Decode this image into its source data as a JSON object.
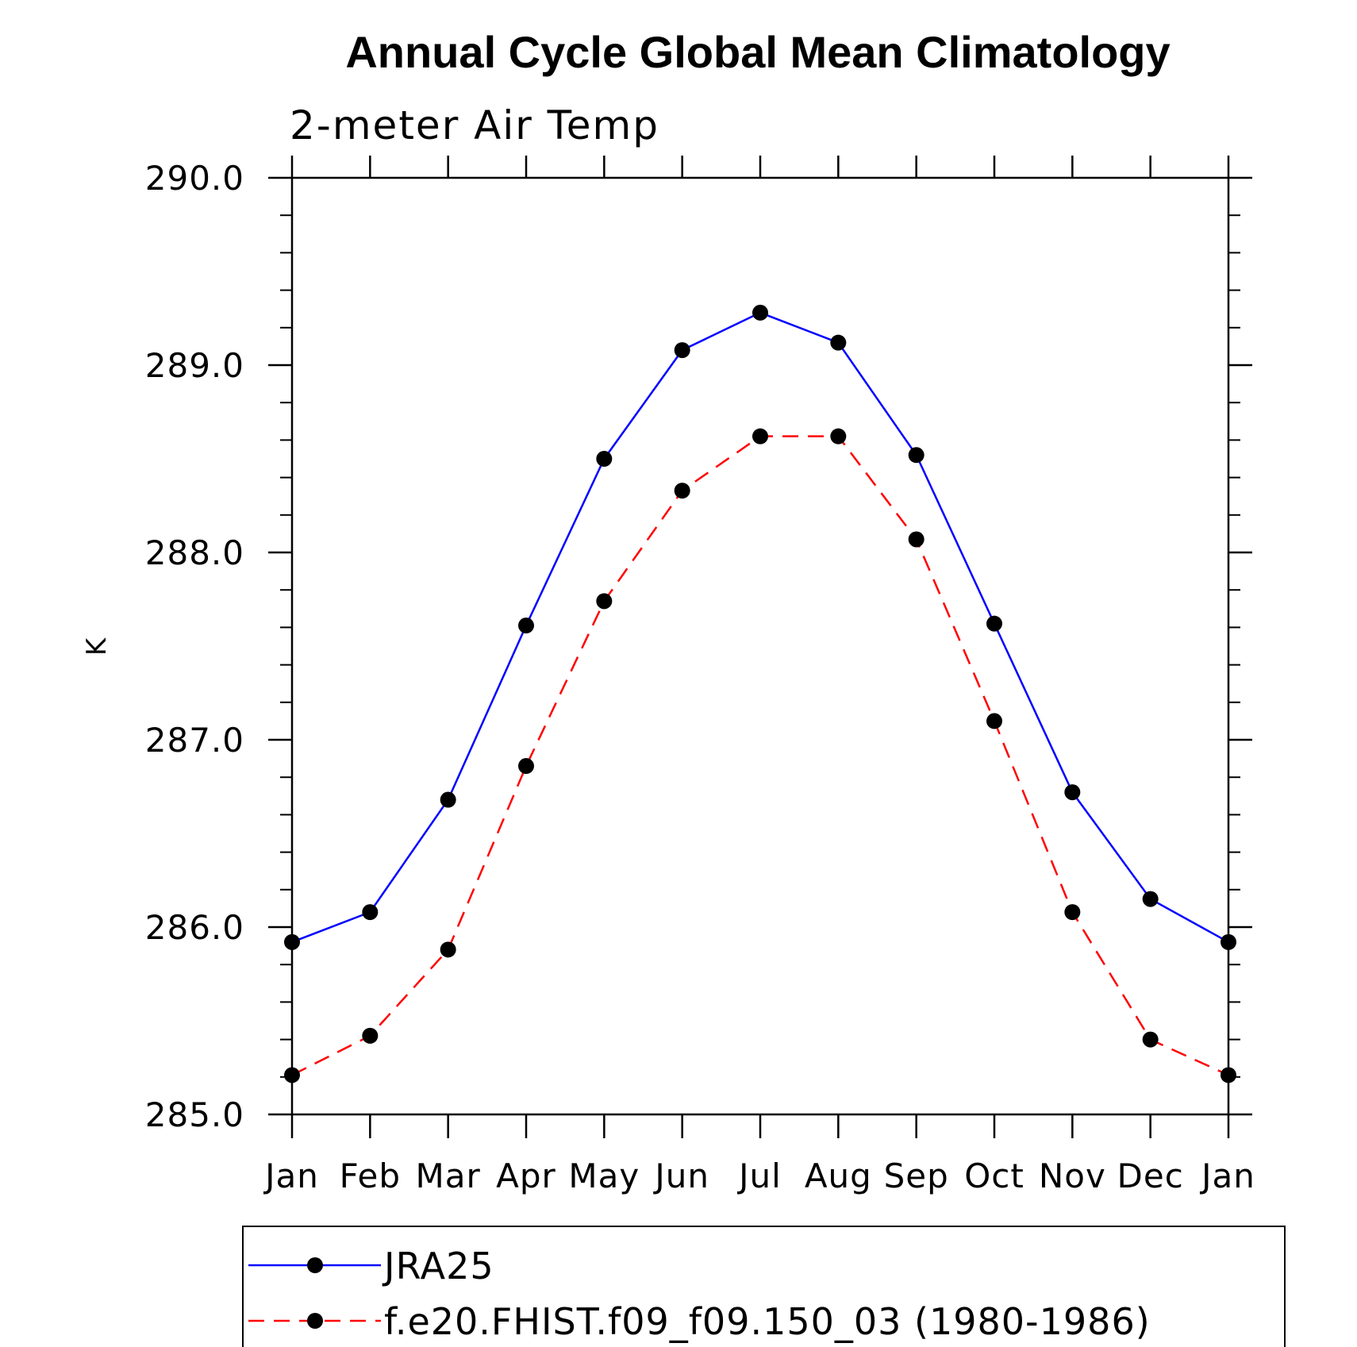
{
  "chart_data": {
    "type": "line",
    "title": "Annual Cycle Global Mean Climatology",
    "subtitle": "2-meter Air Temp",
    "ylabel": "K",
    "xlabel": "",
    "categories": [
      "Jan",
      "Feb",
      "Mar",
      "Apr",
      "May",
      "Jun",
      "Jul",
      "Aug",
      "Sep",
      "Oct",
      "Nov",
      "Dec",
      "Jan"
    ],
    "ylim": [
      285.0,
      290.0
    ],
    "yticks": [
      "285.0",
      "286.0",
      "287.0",
      "288.0",
      "289.0",
      "290.0"
    ],
    "yminor_step": 0.2,
    "grid": false,
    "legend": "bottom",
    "series": [
      {
        "name": "JRA25",
        "color": "#0000ff",
        "dash": "solid",
        "marker": "filled-circle",
        "values": [
          285.92,
          286.08,
          286.68,
          287.61,
          288.5,
          289.08,
          289.28,
          289.12,
          288.52,
          287.62,
          286.72,
          286.15,
          285.92
        ]
      },
      {
        "name": "f.e20.FHIST.f09_f09.150_03 (1980-1986)",
        "color": "#ff0000",
        "dash": "dashed",
        "marker": "filled-circle",
        "values": [
          285.21,
          285.42,
          285.88,
          286.86,
          287.74,
          288.33,
          288.62,
          288.62,
          288.07,
          287.1,
          286.08,
          285.4,
          285.21
        ]
      }
    ]
  }
}
